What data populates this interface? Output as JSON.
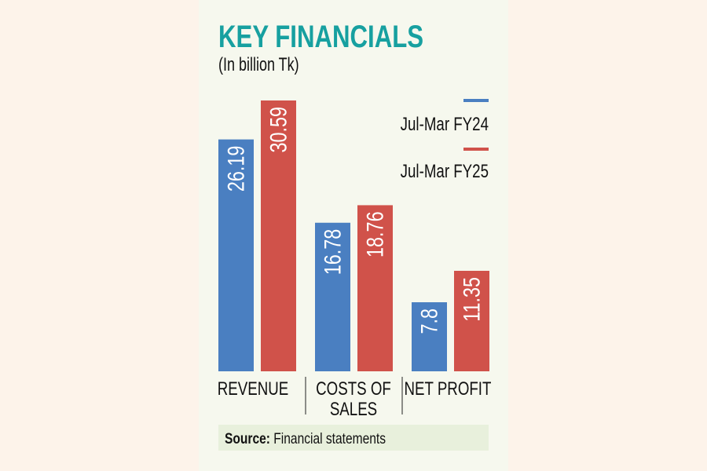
{
  "chart_data": {
    "type": "bar",
    "title": "KEY FINANCIALS",
    "subtitle": "(In billion Tk)",
    "categories": [
      "REVENUE",
      "COSTS OF SALES",
      "NET PROFIT"
    ],
    "category_lines": [
      [
        "REVENUE"
      ],
      [
        "COSTS OF",
        "SALES"
      ],
      [
        "NET PROFIT"
      ]
    ],
    "series": [
      {
        "name": "Jul-Mar FY24",
        "color": "#4a7fc1",
        "values": [
          26.19,
          16.78,
          7.8
        ],
        "labels": [
          "26.19",
          "16.78",
          "7.8"
        ]
      },
      {
        "name": "Jul-Mar FY25",
        "color": "#d0524a",
        "values": [
          30.59,
          18.76,
          11.35
        ],
        "labels": [
          "30.59",
          "18.76",
          "11.35"
        ]
      }
    ],
    "ylim": [
      0,
      30.59
    ],
    "grid": false,
    "legend": "top-right",
    "xlabel": "",
    "ylabel": "",
    "title_color": "#17a0a0"
  },
  "source": {
    "label": "Source:",
    "text": "Financial statements"
  }
}
